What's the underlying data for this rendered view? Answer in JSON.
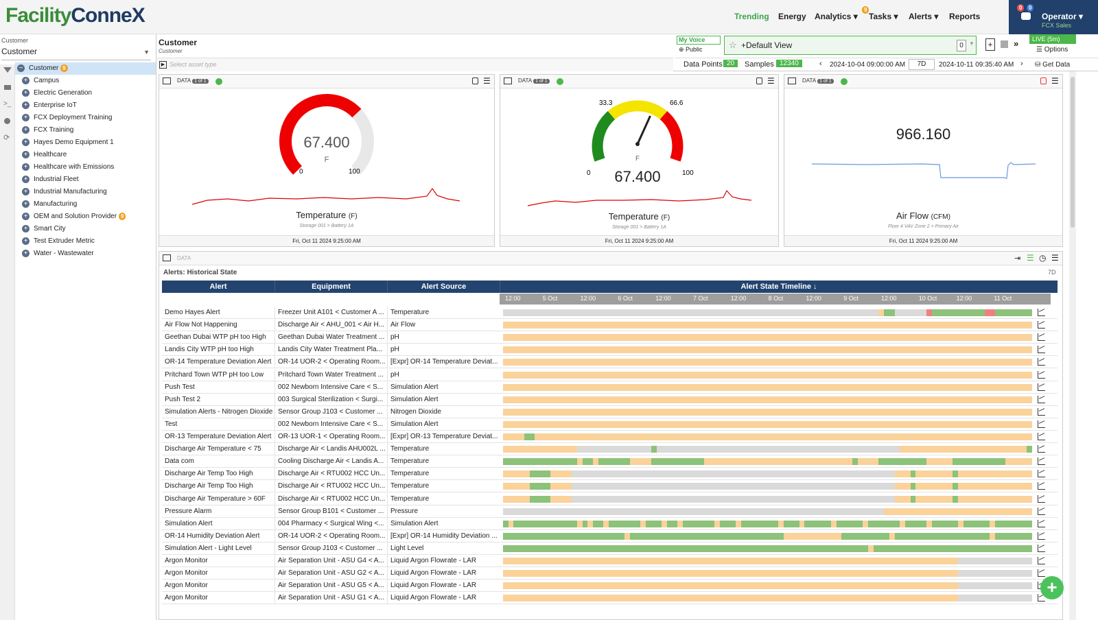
{
  "app": {
    "logo_a": "Facility",
    "logo_b": "Conne",
    "logo_c": "X"
  },
  "nav": {
    "trending": "Trending",
    "energy": "Energy",
    "analytics": "Analytics ▾",
    "analytics_badge": "9",
    "tasks": "Tasks ▾",
    "alerts": "Alerts ▾",
    "reports": "Reports"
  },
  "operator": {
    "name": "Operator ▾",
    "sub": "FCX Sales",
    "b1": "0",
    "b2": "0"
  },
  "left": {
    "label": "Customer",
    "select": "Customer",
    "items": [
      {
        "label": "Customer",
        "badge": "9"
      },
      {
        "label": "Campus"
      },
      {
        "label": "Electric Generation"
      },
      {
        "label": "Enterprise IoT"
      },
      {
        "label": "FCX Deployment Training"
      },
      {
        "label": "FCX Training"
      },
      {
        "label": "Hayes Demo Equipment 1"
      },
      {
        "label": "Healthcare"
      },
      {
        "label": "Healthcare with Emissions"
      },
      {
        "label": "Industrial Fleet"
      },
      {
        "label": "Industrial Manufacturing"
      },
      {
        "label": "Manufacturing"
      },
      {
        "label": "OEM and Solution Provider",
        "badge": "9"
      },
      {
        "label": "Smart City"
      },
      {
        "label": "Test Extruder Metric"
      },
      {
        "label": "Water - Wastewater"
      }
    ]
  },
  "header": {
    "title": "Customer",
    "subtitle": "Customer",
    "asset_placeholder": "Select asset type",
    "my_voice": "My Voice",
    "public": "Public",
    "view": "+Default View",
    "view_count": "0",
    "live": "LIVE (5m)",
    "options": "Options",
    "get_data": "Get Data",
    "data_points_label": "Data Points",
    "data_points": "20",
    "samples_label": "Samples",
    "samples": "12340",
    "start": "2024-10-04 09:00:00 AM",
    "range": "7D",
    "end": "2024-10-11 09:35:40 AM"
  },
  "cards": [
    {
      "data": "DATA",
      "pill": "1 of 1",
      "value": "67.400",
      "unit": "F",
      "min": "0",
      "max": "100",
      "title": "Temperature",
      "title_unit": "(F)",
      "sub": "Storage 001 > Battery 1A",
      "time": "Fri, Oct 11 2024 9:25:00 AM",
      "level": 0.674
    },
    {
      "data": "DATA",
      "pill": "1 of 1",
      "value": "67.400",
      "unit": "F",
      "min": "0",
      "max": "100",
      "low": "33.3",
      "high": "66.6",
      "title": "Temperature",
      "title_unit": "(F)",
      "sub": "Storage 001 > Battery 1A",
      "time": "Fri, Oct 11 2024 9:25:00 AM",
      "level": 0.674
    },
    {
      "data": "DATA",
      "pill": "1 of 1",
      "value": "966.160",
      "title": "Air Flow",
      "title_unit": "(CFM)",
      "sub": "Floor 4 VAV Zone 2 > Primary Air",
      "time": "Fri, Oct 11 2024 9:25:00 AM"
    }
  ],
  "alerts": {
    "data": "DATA",
    "title": "Alerts: Historical State",
    "range": "7D",
    "cols": [
      "Alert",
      "Equipment",
      "Alert Source",
      "Alert State Timeline ↓"
    ],
    "ticks": [
      "12:00",
      "5 Oct",
      "12:00",
      "6 Oct",
      "12:00",
      "7 Oct",
      "12:00",
      "8 Oct",
      "12:00",
      "9 Oct",
      "12:00",
      "10 Oct",
      "12:00",
      "11 Oct"
    ],
    "rows": [
      [
        "Demo Hayes Alert",
        "Freezer Unit A101 < Customer A ...",
        "Temperature"
      ],
      [
        "Air Flow Not Happening",
        "Discharge Air < AHU_001 < Air H...",
        "Air Flow"
      ],
      [
        "Geethan Dubai WTP pH too High",
        "Geethan Dubai Water Treatment ...",
        "pH"
      ],
      [
        "Landis City WTP pH too High",
        "Landis City Water Treatment Pla...",
        "pH"
      ],
      [
        "OR-14 Temperature Deviation Alert",
        "OR-14 UOR-2 < Operating Room...",
        "[Expr] OR-14 Temperature Deviat..."
      ],
      [
        "Pritchard Town WTP pH too Low",
        "Pritchard Town Water Treatment ...",
        "pH"
      ],
      [
        "Push Test",
        "002 Newborn Intensive Care < S...",
        "Simulation Alert"
      ],
      [
        "Push Test 2",
        "003 Surgical Sterilization < Surgi...",
        "Simulation Alert"
      ],
      [
        "Simulation Alerts - Nitrogen Dioxide",
        "Sensor Group J103 < Customer ...",
        "Nitrogen Dioxide"
      ],
      [
        "Test",
        "002 Newborn Intensive Care < S...",
        "Simulation Alert"
      ],
      [
        "OR-13 Temperature Deviation Alert",
        "OR-13 UOR-1 < Operating Room...",
        "[Expr] OR-13 Temperature Deviat..."
      ],
      [
        "Discharge Air Temperature < 75",
        "Discharge Air < Landis AHU002L ...",
        "Temperature"
      ],
      [
        "Data com",
        "Cooling Discharge Air < Landis A...",
        "Temperature"
      ],
      [
        "Discharge Air Temp Too High",
        "Discharge Air < RTU002 HCC Un...",
        "Temperature"
      ],
      [
        "Discharge Air Temp Too High",
        "Discharge Air < RTU002 HCC Un...",
        "Temperature"
      ],
      [
        "Discharge Air Temperature > 60F",
        "Discharge Air < RTU002 HCC Un...",
        "Temperature"
      ],
      [
        "Pressure Alarm",
        "Sensor Group B101 < Customer ...",
        "Pressure"
      ],
      [
        "Simulation Alert",
        "004 Pharmacy < Surgical Wing <...",
        "Simulation Alert"
      ],
      [
        "OR-14 Humidity Deviation Alert",
        "OR-14 UOR-2 < Operating Room...",
        "[Expr] OR-14 Humidity Deviation ..."
      ],
      [
        "Simulation Alert - Light Level",
        "Sensor Group J103 < Customer ...",
        "Light Level"
      ],
      [
        "Argon Monitor",
        "Air Separation Unit - ASU G4 < A...",
        "Liquid Argon Flowrate - LAR"
      ],
      [
        "Argon Monitor",
        "Air Separation Unit - ASU G2 < A...",
        "Liquid Argon Flowrate - LAR"
      ],
      [
        "Argon Monitor",
        "Air Separation Unit - ASU G5 < A...",
        "Liquid Argon Flowrate - LAR"
      ],
      [
        "Argon Monitor",
        "Air Separation Unit - ASU G1 < A...",
        "Liquid Argon Flowrate - LAR"
      ]
    ]
  }
}
